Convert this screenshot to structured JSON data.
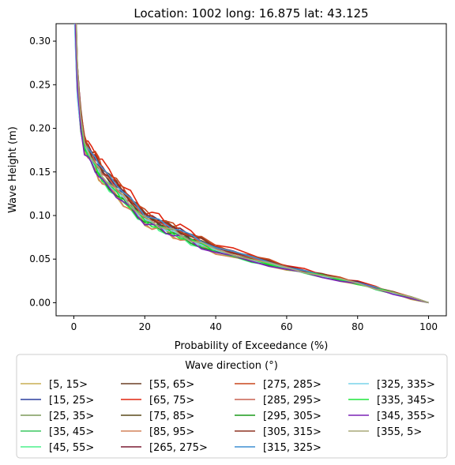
{
  "chart_data": {
    "type": "line",
    "title": "Location: 1002 long: 16.875 lat: 43.125",
    "xlabel": "Probability of Exceedance (%)",
    "ylabel": "Wave Height (m)",
    "xlim": [
      -5,
      105
    ],
    "ylim": [
      -0.015,
      0.32
    ],
    "xticks": [
      "0",
      "20",
      "40",
      "60",
      "80",
      "100"
    ],
    "yticks": [
      "0.00",
      "0.05",
      "0.10",
      "0.15",
      "0.20",
      "0.25",
      "0.30"
    ],
    "grid": false,
    "legend": {
      "title": "Wave direction (°)",
      "placement": "below",
      "columns": 4
    },
    "series": [
      {
        "name": "[5, 15>",
        "color": "#c9ae52",
        "peak": 0.28,
        "knee": 0.175,
        "mid": 0.098,
        "ripple": 0.004
      },
      {
        "name": "[15, 25>",
        "color": "#2a3e9e",
        "peak": 0.27,
        "knee": 0.183,
        "mid": 0.104,
        "ripple": 0.003
      },
      {
        "name": "[25, 35>",
        "color": "#7d9a5a",
        "peak": 0.3,
        "knee": 0.18,
        "mid": 0.102,
        "ripple": 0.003
      },
      {
        "name": "[35, 45>",
        "color": "#3cc760",
        "peak": 0.25,
        "knee": 0.178,
        "mid": 0.1,
        "ripple": 0.003
      },
      {
        "name": "[45, 55>",
        "color": "#4cf08c",
        "peak": 0.29,
        "knee": 0.176,
        "mid": 0.099,
        "ripple": 0.004
      },
      {
        "name": "[55, 65>",
        "color": "#6b3e25",
        "peak": 0.3,
        "knee": 0.187,
        "mid": 0.107,
        "ripple": 0.003
      },
      {
        "name": "[65, 75>",
        "color": "#e0250e",
        "peak": 0.26,
        "knee": 0.19,
        "mid": 0.11,
        "ripple": 0.005
      },
      {
        "name": "[75, 85>",
        "color": "#5a4a1c",
        "peak": 0.27,
        "knee": 0.184,
        "mid": 0.105,
        "ripple": 0.003
      },
      {
        "name": "[85, 95>",
        "color": "#d4835a",
        "peak": 0.25,
        "knee": 0.177,
        "mid": 0.097,
        "ripple": 0.004
      },
      {
        "name": "[265, 275>",
        "color": "#7a1a32",
        "peak": 0.29,
        "knee": 0.186,
        "mid": 0.106,
        "ripple": 0.003
      },
      {
        "name": "[275, 285>",
        "color": "#c8471c",
        "peak": 0.28,
        "knee": 0.188,
        "mid": 0.108,
        "ripple": 0.004
      },
      {
        "name": "[285, 295>",
        "color": "#c96050",
        "peak": 0.26,
        "knee": 0.182,
        "mid": 0.103,
        "ripple": 0.003
      },
      {
        "name": "[295, 305>",
        "color": "#1a9a1a",
        "peak": 0.23,
        "knee": 0.175,
        "mid": 0.101,
        "ripple": 0.003
      },
      {
        "name": "[305, 315>",
        "color": "#8e3324",
        "peak": 0.27,
        "knee": 0.185,
        "mid": 0.106,
        "ripple": 0.003
      },
      {
        "name": "[315, 325>",
        "color": "#3f8fd2",
        "peak": 0.26,
        "knee": 0.184,
        "mid": 0.108,
        "ripple": 0.002
      },
      {
        "name": "[325, 335>",
        "color": "#78d4ea",
        "peak": 0.22,
        "knee": 0.178,
        "mid": 0.102,
        "ripple": 0.002
      },
      {
        "name": "[335, 345>",
        "color": "#1ee63a",
        "peak": 0.27,
        "knee": 0.178,
        "mid": 0.1,
        "ripple": 0.003
      },
      {
        "name": "[345, 355>",
        "color": "#7b22b6",
        "peak": 0.26,
        "knee": 0.172,
        "mid": 0.103,
        "ripple": 0.003
      },
      {
        "name": "[355, 5>",
        "color": "#a9a878",
        "peak": 0.3,
        "knee": 0.181,
        "mid": 0.102,
        "ripple": 0.003
      }
    ]
  }
}
